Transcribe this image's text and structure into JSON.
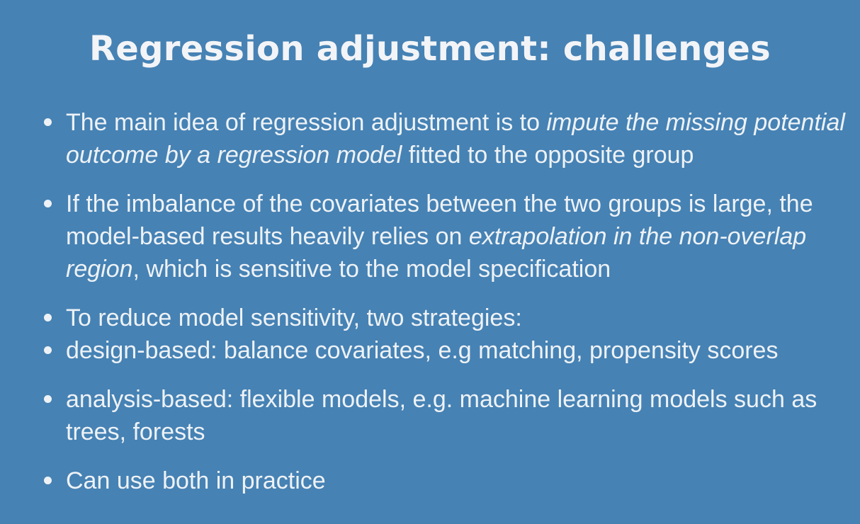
{
  "slide": {
    "title": "Regression adjustment: challenges",
    "bullets": [
      {
        "pre": "The main idea of regression adjustment is to ",
        "italic": "impute the missing potential outcome by a regression model",
        "post": " fitted to the opposite group"
      },
      {
        "pre": "If the imbalance of the covariates between the two groups is large, the model-based results heavily relies on ",
        "italic": "extrapolation in the non-overlap region",
        "post": ", which is sensitive to the model specification"
      },
      {
        "text": "To reduce model sensitivity, two strategies:"
      },
      {
        "text": "design-based: balance covariates, e.g matching, propensity scores"
      },
      {
        "text": "analysis-based: flexible models, e.g. machine learning models such as trees, forests"
      },
      {
        "text": "Can use both in practice"
      }
    ]
  }
}
